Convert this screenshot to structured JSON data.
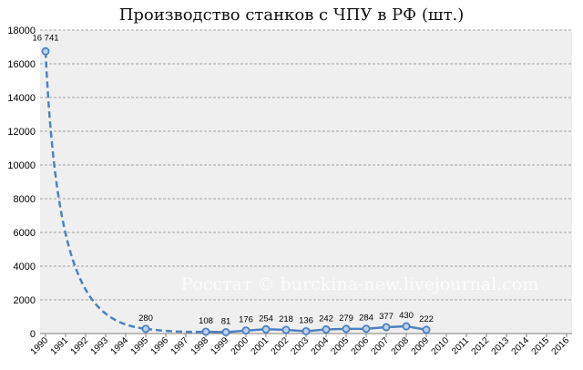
{
  "chart_data": {
    "type": "line",
    "title": "Производство станков с ЧПУ в РФ (шт.)",
    "watermark": "Росстат © burckina-new.livejournal.com",
    "xlabel": "",
    "ylabel": "",
    "ylim": [
      0,
      18000
    ],
    "y_ticks": [
      "0",
      "2000",
      "4000",
      "6000",
      "8000",
      "10000",
      "12000",
      "14000",
      "16000",
      "18000"
    ],
    "x_ticks": [
      "1990",
      "1991",
      "1992",
      "1993",
      "1994",
      "1995",
      "1996",
      "1997",
      "1998",
      "1999",
      "2000",
      "2001",
      "2002",
      "2003",
      "2004",
      "2005",
      "2006",
      "2007",
      "2008",
      "2009",
      "2010",
      "2011",
      "2012",
      "2013",
      "2014",
      "2015",
      "2016"
    ],
    "grid": true,
    "plot_background": "#efefef",
    "series_color": "#4f81bd",
    "marker_fill": "#bcd2ee",
    "series": [
      {
        "points": [
          {
            "x": 1990,
            "y": 16741,
            "label": "16 741"
          },
          {
            "x": 1995,
            "y": 280,
            "label": "280"
          },
          {
            "x": 1998,
            "y": 108,
            "label": "108"
          },
          {
            "x": 1999,
            "y": 81,
            "label": "81"
          },
          {
            "x": 2000,
            "y": 176,
            "label": "176"
          },
          {
            "x": 2001,
            "y": 254,
            "label": "254"
          },
          {
            "x": 2002,
            "y": 218,
            "label": "218"
          },
          {
            "x": 2003,
            "y": 136,
            "label": "136"
          },
          {
            "x": 2004,
            "y": 242,
            "label": "242"
          },
          {
            "x": 2005,
            "y": 279,
            "label": "279"
          },
          {
            "x": 2006,
            "y": 284,
            "label": "284"
          },
          {
            "x": 2007,
            "y": 377,
            "label": "377"
          },
          {
            "x": 2008,
            "y": 430,
            "label": "430"
          },
          {
            "x": 2009,
            "y": 222,
            "label": "222"
          }
        ]
      }
    ]
  }
}
